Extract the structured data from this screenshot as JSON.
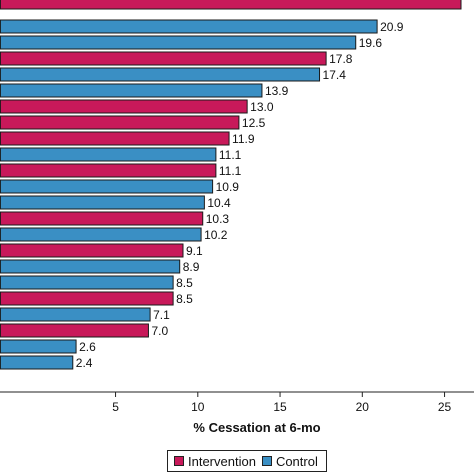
{
  "chart_data": {
    "type": "bar",
    "orientation": "horizontal",
    "xlabel": "% Cessation at 6-mo",
    "xlim": [
      -2,
      26
    ],
    "xticks": [
      5,
      10,
      15,
      20,
      25
    ],
    "grid": false,
    "legend_placement": "bottom",
    "series_colors": {
      "intervention": "#c8195a",
      "control": "#3a8fc4"
    },
    "bars": [
      {
        "series": "intervention",
        "value": 26.0,
        "label": ""
      },
      {
        "series": "control",
        "value": 20.9,
        "label": "20.9"
      },
      {
        "series": "control",
        "value": 19.6,
        "label": "19.6"
      },
      {
        "series": "intervention",
        "value": 17.8,
        "label": "17.8"
      },
      {
        "series": "control",
        "value": 17.4,
        "label": "17.4"
      },
      {
        "series": "control",
        "value": 13.9,
        "label": "13.9"
      },
      {
        "series": "intervention",
        "value": 13.0,
        "label": "13.0"
      },
      {
        "series": "intervention",
        "value": 12.5,
        "label": "12.5"
      },
      {
        "series": "intervention",
        "value": 11.9,
        "label": "11.9"
      },
      {
        "series": "control",
        "value": 11.1,
        "label": "11.1"
      },
      {
        "series": "intervention",
        "value": 11.1,
        "label": "11.1"
      },
      {
        "series": "control",
        "value": 10.9,
        "label": "10.9"
      },
      {
        "series": "control",
        "value": 10.4,
        "label": "10.4"
      },
      {
        "series": "intervention",
        "value": 10.3,
        "label": "10.3"
      },
      {
        "series": "control",
        "value": 10.2,
        "label": "10.2"
      },
      {
        "series": "intervention",
        "value": 9.1,
        "label": "9.1"
      },
      {
        "series": "control",
        "value": 8.9,
        "label": "8.9"
      },
      {
        "series": "control",
        "value": 8.5,
        "label": "8.5"
      },
      {
        "series": "intervention",
        "value": 8.5,
        "label": "8.5"
      },
      {
        "series": "control",
        "value": 7.1,
        "label": "7.1"
      },
      {
        "series": "intervention",
        "value": 7.0,
        "label": "7.0"
      },
      {
        "series": "control",
        "value": 2.6,
        "label": "2.6"
      },
      {
        "series": "control",
        "value": 2.4,
        "label": "2.4"
      }
    ]
  },
  "legend": {
    "items": [
      {
        "label": "Intervention",
        "color": "#c8195a"
      },
      {
        "label": "Control",
        "color": "#3a8fc4"
      }
    ]
  }
}
